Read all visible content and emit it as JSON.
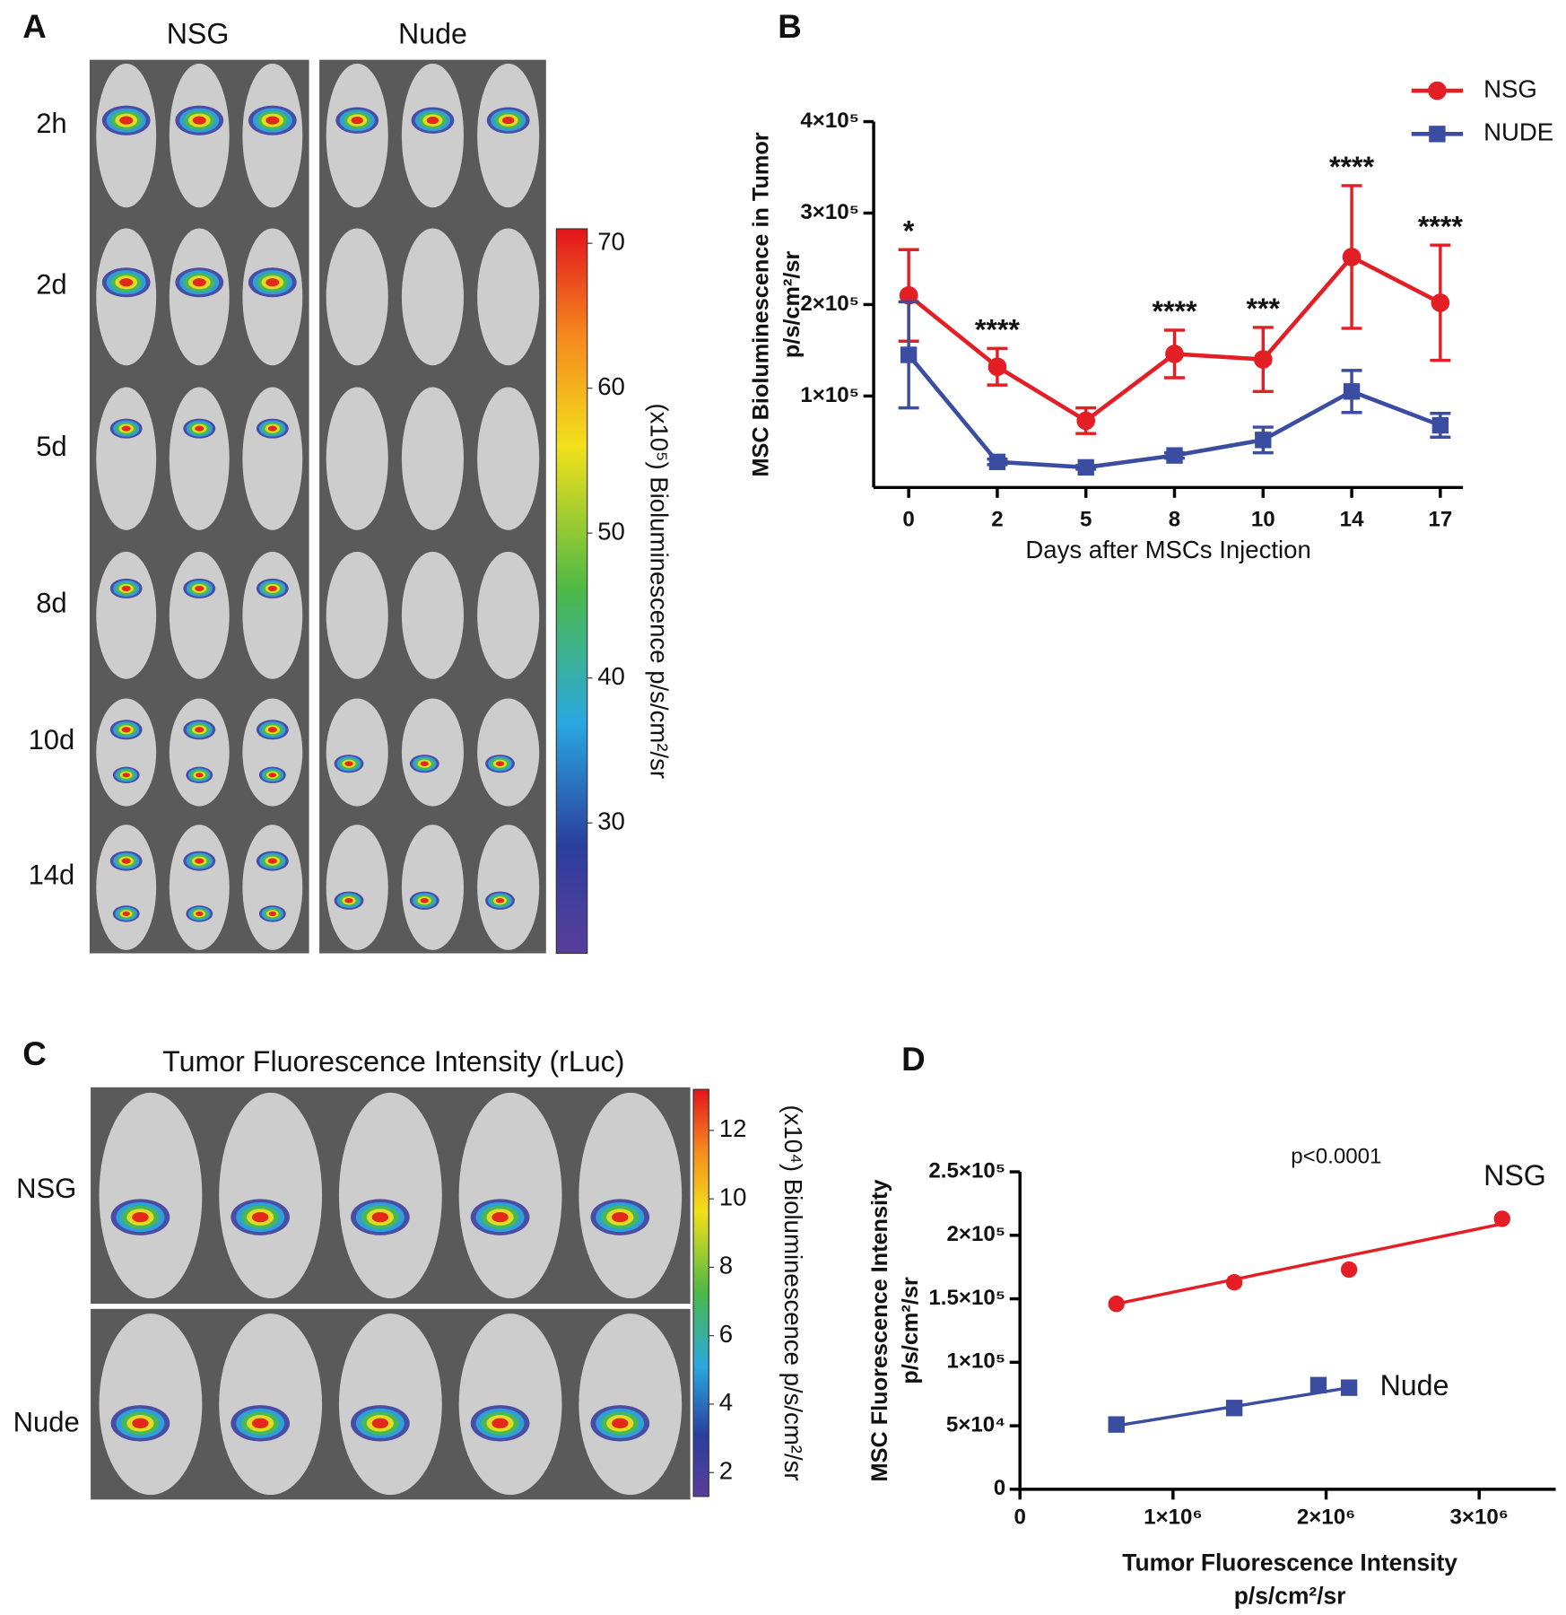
{
  "panel_labels": [
    "A",
    "B",
    "C",
    "D"
  ],
  "panel_a": {
    "columns": [
      "NSG",
      "Nude"
    ],
    "rows": [
      "2h",
      "2d",
      "5d",
      "8d",
      "10d",
      "14d"
    ],
    "colorbar": {
      "label": "(x10⁵) Bioluminescence p/s/cm²/sr",
      "range": [
        21,
        71
      ],
      "ticks": [
        30,
        40,
        50,
        60,
        70
      ]
    }
  },
  "panel_c": {
    "title": "Tumor Fluorescence Intensity (rLuc)",
    "rows": [
      "NSG",
      "Nude"
    ],
    "colorbar": {
      "label": "(x10⁴) Bioluminescence p/s/cm²/sr",
      "range": [
        1.3,
        13.2
      ],
      "ticks": [
        2,
        4,
        6,
        8,
        10,
        12
      ]
    }
  },
  "chart_data": [
    {
      "type": "line",
      "y_label": [
        "MSC Bioluminescence in Tumor",
        "p/s/cm²/sr"
      ],
      "x_label": "Days after MSCs Injection",
      "categories": [
        "0",
        "2",
        "5",
        "8",
        "10",
        "14",
        "17"
      ],
      "series": [
        {
          "name": "NSG",
          "color": "#e31e24",
          "marker": "circle",
          "values": [
            210000,
            132000,
            73000,
            146000,
            140000,
            252000,
            202000
          ],
          "errors": [
            50000,
            20000,
            14000,
            26000,
            35000,
            78000,
            63000
          ]
        },
        {
          "name": "NUDE",
          "color": "#3b4da0",
          "marker": "square",
          "values": [
            145000,
            28000,
            22000,
            35000,
            52000,
            105000,
            68000
          ],
          "errors": [
            58000,
            3000,
            2000,
            3000,
            14000,
            23000,
            13000
          ]
        }
      ],
      "annotations": [
        "*",
        "****",
        null,
        "****",
        "***",
        "****",
        "****"
      ],
      "ylim": [
        0,
        400000
      ],
      "yticks": [
        {
          "value": 100000,
          "label": "1×10⁵"
        },
        {
          "value": 200000,
          "label": "2×10⁵"
        },
        {
          "value": 300000,
          "label": "3×10⁵"
        },
        {
          "value": 400000,
          "label": "4×10⁵"
        }
      ],
      "legend": "upper right"
    },
    {
      "type": "scatter",
      "y_label": [
        "MSC Fluorescence Intensity",
        "p/s/cm²/sr"
      ],
      "x_label": [
        "Tumor Fluorescence Intensity",
        "p/s/cm²/sr"
      ],
      "annotation": "p<0.0001",
      "series": [
        {
          "name": "NSG",
          "color": "#e31e24",
          "marker": "circle",
          "x": [
            630000,
            1400000,
            2150000,
            3150000
          ],
          "values": [
            146000,
            163000,
            173000,
            213000
          ],
          "fit_x": [
            630000,
            3150000
          ],
          "fit_y": [
            146000,
            209000
          ]
        },
        {
          "name": "Nude",
          "color": "#3b4da0",
          "marker": "square",
          "x": [
            630000,
            1400000,
            1950000,
            2150000
          ],
          "values": [
            51000,
            64000,
            82000,
            80000
          ],
          "fit_x": [
            630000,
            2150000
          ],
          "fit_y": [
            50000,
            80000
          ]
        }
      ],
      "xlim": [
        0,
        3500000
      ],
      "xticks": [
        0,
        {
          "value": 1000000,
          "label": "1×10⁶"
        },
        {
          "value": 2000000,
          "label": "2×10⁶"
        },
        {
          "value": 3000000,
          "label": "3×10⁶"
        }
      ],
      "ylim": [
        0,
        250000
      ],
      "yticks": [
        0,
        {
          "value": 50000,
          "label": "5×10⁴"
        },
        {
          "value": 100000,
          "label": "1×10⁵"
        },
        {
          "value": 150000,
          "label": "1.5×10⁵"
        },
        {
          "value": 200000,
          "label": "2×10⁵"
        },
        {
          "value": 250000,
          "label": "2.5×10⁵"
        }
      ]
    }
  ]
}
